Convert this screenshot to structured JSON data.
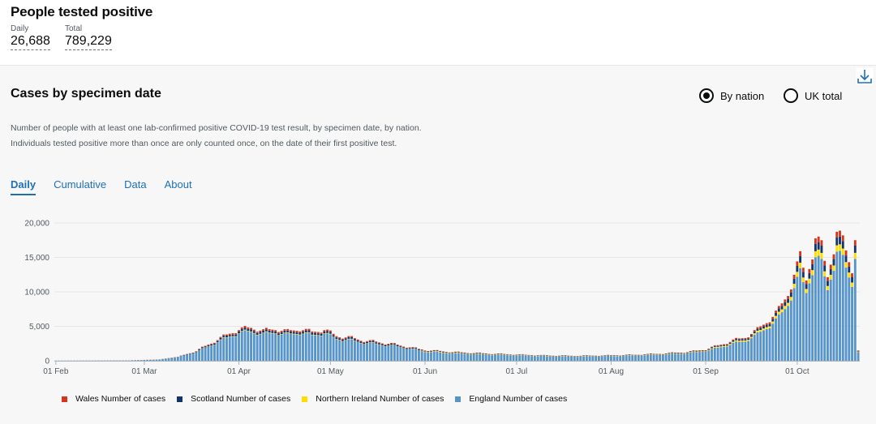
{
  "header": {
    "title": "People tested positive",
    "daily_label": "Daily",
    "daily_value": "26,688",
    "total_label": "Total",
    "total_value": "789,229"
  },
  "card": {
    "title": "Cases by specimen date",
    "radio_nation": "By nation",
    "radio_uk": "UK total",
    "description": "Number of people with at least one lab-confirmed positive COVID-19 test result, by specimen date, by nation. Individuals tested positive more than once are only counted once, on the date of their first positive test.",
    "tabs": [
      "Daily",
      "Cumulative",
      "Data",
      "About"
    ]
  },
  "colors": {
    "wales": "#d4351c",
    "scotland": "#12366b",
    "northern_ireland": "#ffdd00",
    "england": "#5694ca"
  },
  "chart_data": {
    "type": "bar",
    "stacked": true,
    "title": "Cases by specimen date",
    "xlabel": "",
    "ylabel": "",
    "ylim": [
      0,
      20000
    ],
    "yticks": [
      "0",
      "5,000",
      "10,000",
      "15,000",
      "20,000"
    ],
    "yticks_values": [
      0,
      5000,
      10000,
      15000,
      20000
    ],
    "xticks": [
      "01 Feb",
      "01 Mar",
      "01 Apr",
      "01 May",
      "01 Jun",
      "01 Jul",
      "01 Aug",
      "01 Sep",
      "01 Oct"
    ],
    "xticks_day_index": [
      0,
      29,
      60,
      90,
      121,
      151,
      182,
      213,
      243
    ],
    "start_date": "01 Feb",
    "legend_position": "bottom",
    "series": [
      {
        "name": "Wales Number of cases",
        "color": "#d4351c"
      },
      {
        "name": "Scotland Number of cases",
        "color": "#12366b"
      },
      {
        "name": "Northern Ireland Number of cases",
        "color": "#ffdd00"
      },
      {
        "name": "England Number of cases",
        "color": "#5694ca"
      }
    ],
    "keyframes_day_total": [
      [
        0,
        30
      ],
      [
        24,
        60
      ],
      [
        34,
        200
      ],
      [
        40,
        600
      ],
      [
        46,
        1500
      ],
      [
        52,
        3000
      ],
      [
        57,
        4200
      ],
      [
        60,
        4800
      ],
      [
        64,
        5100
      ],
      [
        68,
        4600
      ],
      [
        72,
        4900
      ],
      [
        76,
        4500
      ],
      [
        80,
        4900
      ],
      [
        84,
        4400
      ],
      [
        88,
        4800
      ],
      [
        92,
        3800
      ],
      [
        96,
        3600
      ],
      [
        100,
        3200
      ],
      [
        105,
        2900
      ],
      [
        110,
        2600
      ],
      [
        116,
        2100
      ],
      [
        121,
        1600
      ],
      [
        130,
        1300
      ],
      [
        140,
        1100
      ],
      [
        150,
        950
      ],
      [
        160,
        800
      ],
      [
        170,
        750
      ],
      [
        180,
        800
      ],
      [
        190,
        900
      ],
      [
        200,
        1100
      ],
      [
        207,
        1300
      ],
      [
        213,
        1700
      ],
      [
        218,
        2400
      ],
      [
        222,
        3000
      ],
      [
        226,
        3500
      ],
      [
        230,
        4600
      ],
      [
        234,
        6200
      ],
      [
        237,
        7500
      ],
      [
        240,
        10000
      ],
      [
        242,
        13000
      ],
      [
        244,
        15000
      ],
      [
        246,
        12000
      ],
      [
        249,
        18500
      ],
      [
        251,
        16500
      ],
      [
        253,
        12500
      ],
      [
        256,
        19500
      ],
      [
        259,
        16000
      ],
      [
        261,
        13500
      ],
      [
        262,
        17500
      ],
      [
        263,
        1500
      ]
    ]
  },
  "chart_data_series_share": {
    "wales": 0.045,
    "scotland": 0.06,
    "northern_ireland": 0.05,
    "england": 0.845
  }
}
